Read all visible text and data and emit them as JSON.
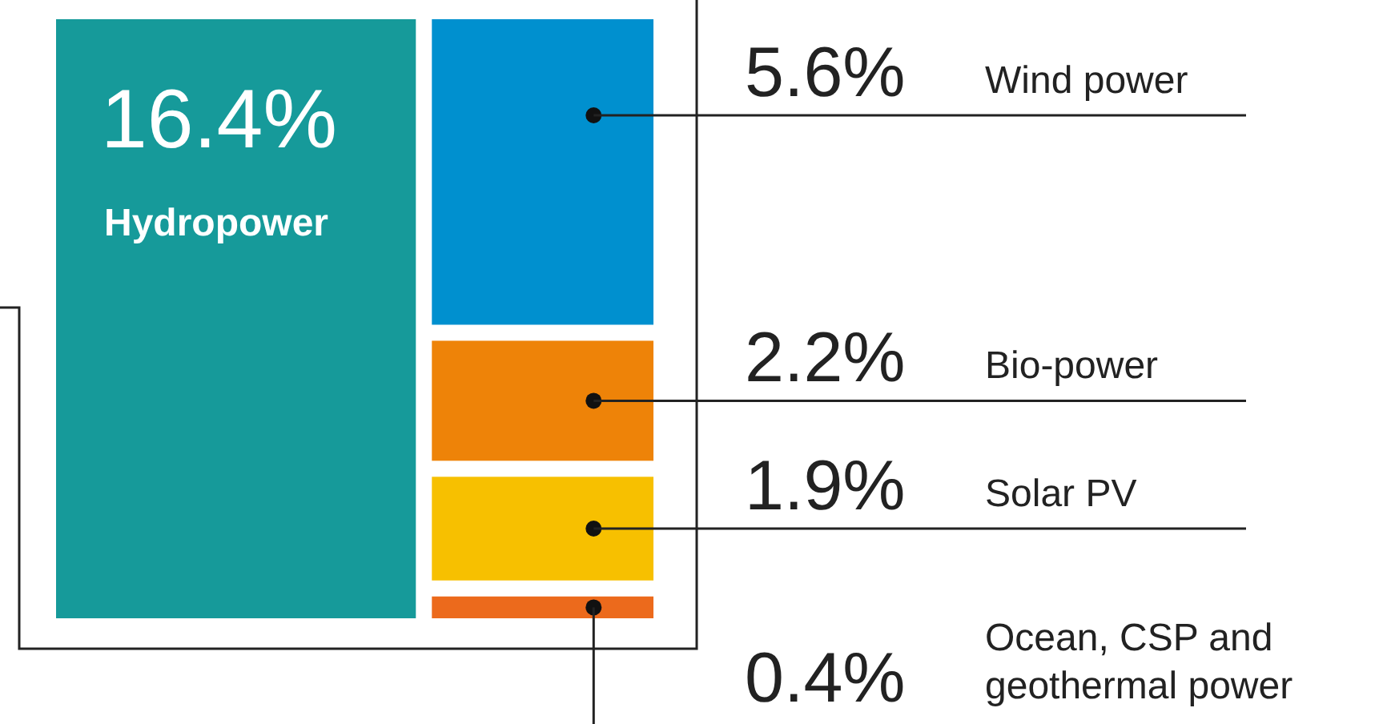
{
  "chart_data": {
    "type": "other",
    "categories": [
      "Hydropower",
      "Wind power",
      "Bio-power",
      "Solar PV",
      "Ocean, CSP and geothermal power"
    ],
    "values": [
      16.4,
      5.6,
      2.2,
      1.9,
      0.4
    ],
    "value_labels": [
      "16.4%",
      "5.6%",
      "2.2%",
      "1.9%",
      "0.4%"
    ],
    "colors": [
      "#169a9a",
      "#0090cf",
      "#ee8308",
      "#f7c000",
      "#ec6a1c"
    ]
  }
}
